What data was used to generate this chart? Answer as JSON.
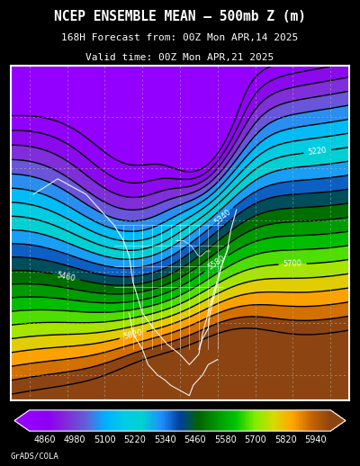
{
  "title1": "NCEP ENSEMBLE MEAN – 500mb Z (m)",
  "title2": "168H Forecast from: 00Z Mon APR,14 2025",
  "title3": "Valid time: 00Z Mon APR,21 2025",
  "colorbar_levels": [
    4860,
    4980,
    5100,
    5220,
    5340,
    5460,
    5580,
    5700,
    5820,
    5940
  ],
  "colorbar_colors": [
    "#9400D3",
    "#8B00B0",
    "#7B2FBE",
    "#6060C0",
    "#00BFFF",
    "#00CED1",
    "#1E90FF",
    "#00008B",
    "#006400",
    "#00C800",
    "#90EE00",
    "#FFFF00",
    "#FFA500",
    "#FF8C00",
    "#8B4513"
  ],
  "background_color": "#000000",
  "map_border_color": "#ffffff",
  "contour_color": "#000000",
  "grid_color": "#b0b0b0",
  "label_color": "#ffffff",
  "signature": "GrADS/COLA"
}
